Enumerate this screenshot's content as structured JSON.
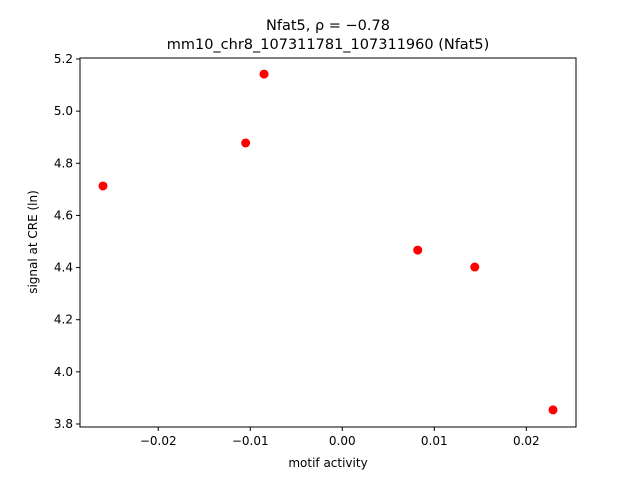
{
  "chart_data": {
    "type": "scatter",
    "title": "Nfat5, ρ = −0.78",
    "subtitle": "mm10_chr8_107311781_107311960 (Nfat5)",
    "x_label": "motif activity",
    "y_label": "signal at CRE (ln)",
    "color": "#ff0000",
    "series": [
      {
        "x": [
          -0.026,
          -0.0105,
          -0.0085,
          0.0082,
          0.0144,
          0.0229
        ],
        "values": [
          4.713,
          4.878,
          5.142,
          4.467,
          4.402,
          3.854
        ]
      }
    ],
    "xlim": [
      -0.0285,
      0.0254
    ],
    "ylim": [
      3.7885,
      5.2038
    ],
    "xticks": [
      {
        "value": -0.02,
        "label": "−0.02"
      },
      {
        "value": -0.01,
        "label": "−0.01"
      },
      {
        "value": 0,
        "label": "0.00"
      },
      {
        "value": 0.01,
        "label": "0.01"
      },
      {
        "value": 0.02,
        "label": "0.02"
      }
    ],
    "yticks": [
      {
        "value": 3.8,
        "label": "3.8"
      },
      {
        "value": 4.0,
        "label": "4.0"
      },
      {
        "value": 4.2,
        "label": "4.2"
      },
      {
        "value": 4.4,
        "label": "4.4"
      },
      {
        "value": 4.6,
        "label": "4.6"
      },
      {
        "value": 4.8,
        "label": "4.8"
      },
      {
        "value": 5.0,
        "label": "5.0"
      },
      {
        "value": 5.2,
        "label": "5.2"
      }
    ]
  }
}
